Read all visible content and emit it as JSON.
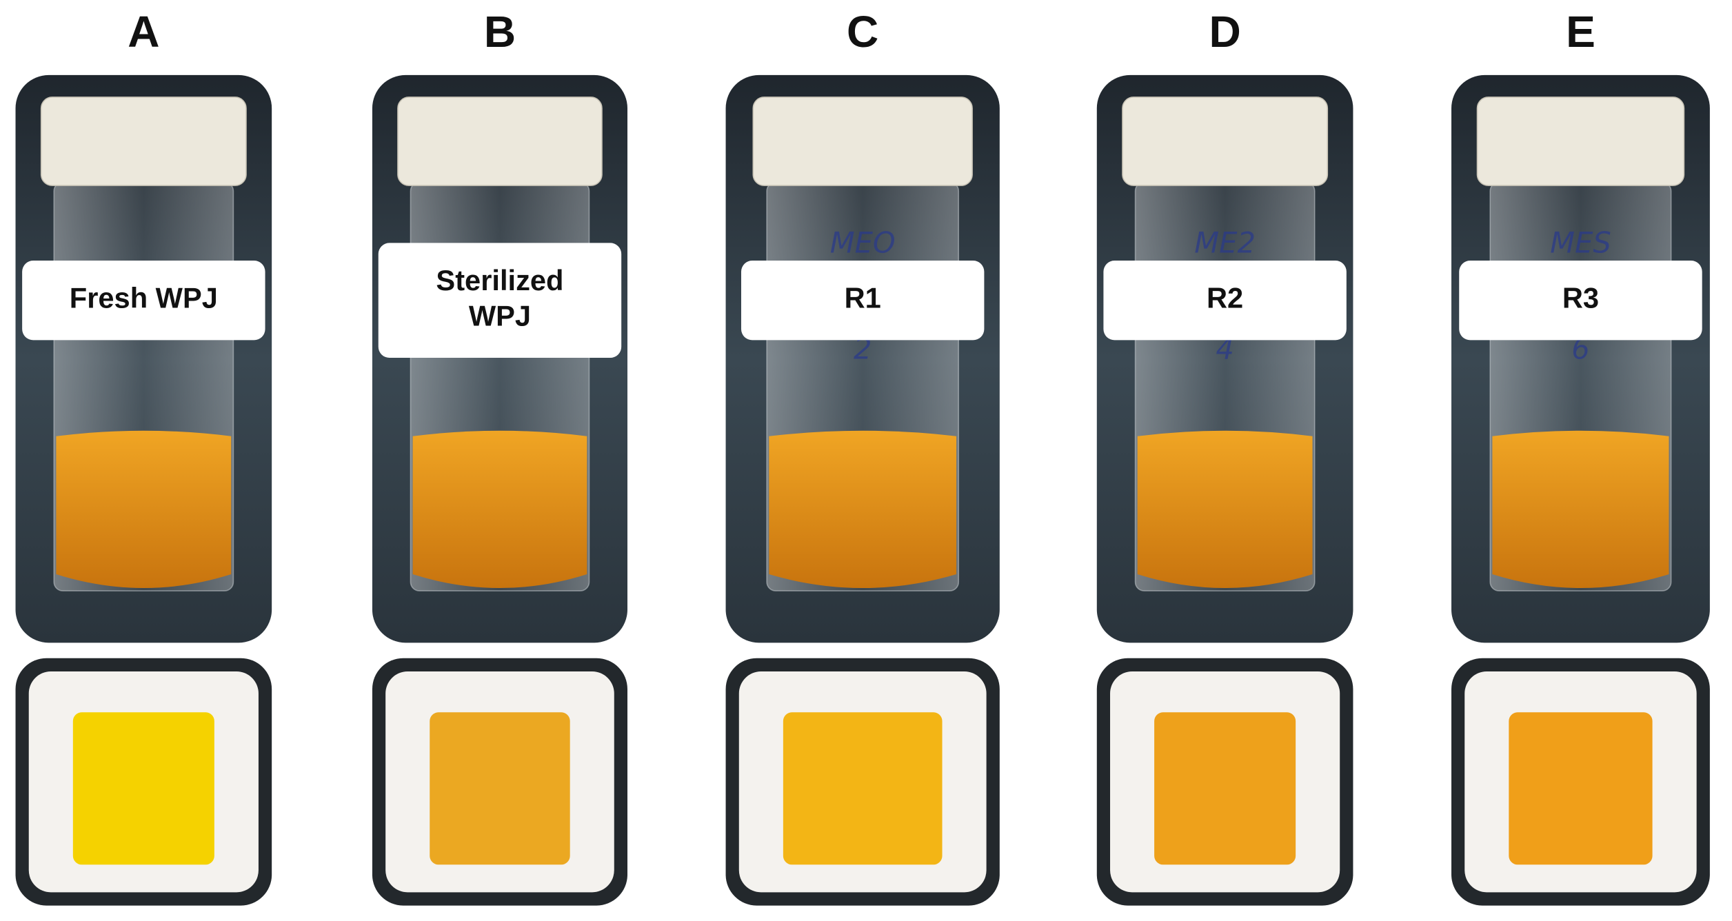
{
  "panels": [
    {
      "letter": "A",
      "label_lines": [
        "Fresh WPJ"
      ]
    },
    {
      "letter": "B",
      "label_lines": [
        "Sterilized",
        "WPJ"
      ]
    },
    {
      "letter": "C",
      "label_lines": [
        "R1"
      ],
      "handwriting": [
        "MEO",
        "2"
      ]
    },
    {
      "letter": "D",
      "label_lines": [
        "R2"
      ],
      "handwriting": [
        "ME2",
        "4"
      ]
    },
    {
      "letter": "E",
      "label_lines": [
        "R3"
      ],
      "handwriting": [
        "MES",
        "6"
      ]
    }
  ]
}
